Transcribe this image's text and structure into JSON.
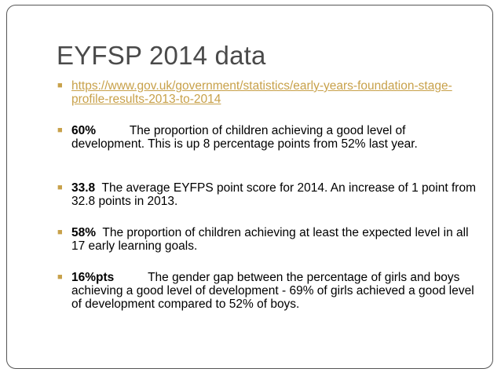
{
  "slide": {
    "title": "EYFSP 2014 data",
    "bullets": [
      {
        "type": "link",
        "text": "https://www.gov.uk/government/statistics/early-years-foundation-stage-profile-results-2013-to-2014"
      },
      {
        "stat": "60%",
        "gap": "          ",
        "text": "The proportion of children achieving a good level of development. This is up 8 percentage points from 52% last year."
      },
      {
        "stat": "33.8",
        "gap": "  ",
        "text": "The average EYFPS point score for 2014. An increase of 1 point from 32.8 points in 2013."
      },
      {
        "stat": "58%",
        "gap": "  ",
        "text": "The proportion of children achieving at least the expected level in all 17 early learning goals."
      },
      {
        "stat": "16%pts",
        "gap": "          ",
        "text": "The gender gap between the percentage of girls and boys achieving a good level of development - 69% of girls achieved a good level of development compared to 52% of boys."
      }
    ]
  },
  "colors": {
    "accent": "#c8a14a",
    "title": "#4a4a4a",
    "frame": "#555555"
  }
}
